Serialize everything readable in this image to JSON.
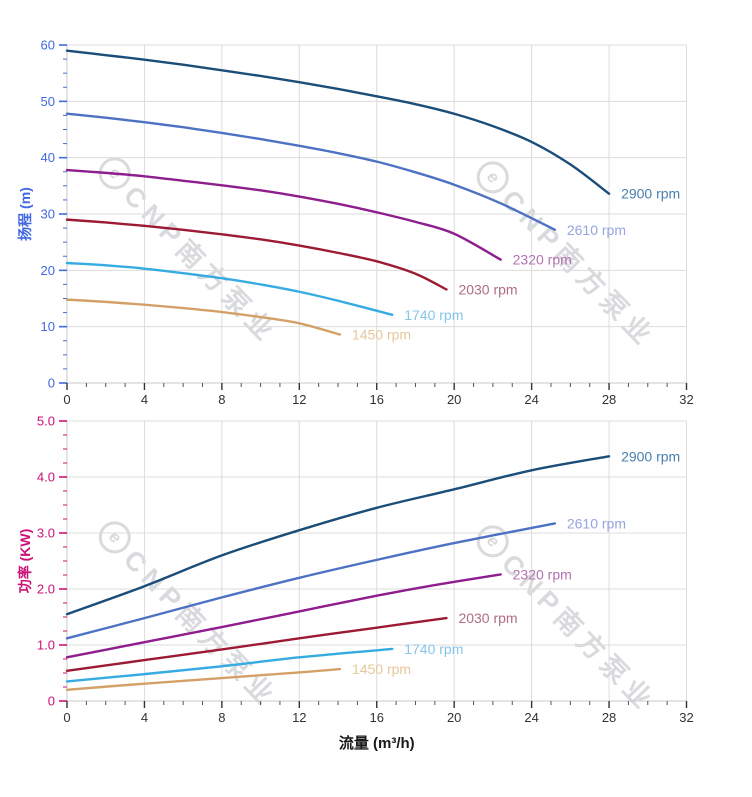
{
  "x_axis_title": "流量 (m³/h)",
  "watermark": {
    "symbol": "e",
    "text": "CNP南方泵业"
  },
  "chart_data": [
    {
      "type": "line",
      "name": "head-vs-flow",
      "title": "",
      "xlabel": "流量 (m³/h)",
      "ylabel": "扬程 (m)",
      "xlim": [
        0,
        32
      ],
      "ylim": [
        0,
        60
      ],
      "grid": true,
      "legend_position": "end-of-line-labels",
      "x_major_step": 4,
      "x_minor_step": 1,
      "y_major_step": 10,
      "y_minor_step": 2.5,
      "x_tick_labels": [
        "0",
        "4",
        "8",
        "12",
        "16",
        "20",
        "24",
        "28",
        "32"
      ],
      "y_tick_labels": [
        "0",
        "10",
        "20",
        "30",
        "40",
        "50",
        "60"
      ],
      "axis_color": "#4169e1",
      "x_tick_color": "#333333",
      "series": [
        {
          "label": "2900 rpm",
          "color": "#1b4d79",
          "label_color": "#4a7fae",
          "points": [
            [
              0,
              59
            ],
            [
              2,
              58.2
            ],
            [
              4,
              57.4
            ],
            [
              6,
              56.5
            ],
            [
              8,
              55.5
            ],
            [
              10,
              54.5
            ],
            [
              12,
              53.4
            ],
            [
              14,
              52.2
            ],
            [
              16,
              50.9
            ],
            [
              18,
              49.5
            ],
            [
              20,
              47.8
            ],
            [
              22,
              45.6
            ],
            [
              24,
              42.8
            ],
            [
              26,
              38.8
            ],
            [
              28,
              33.6
            ]
          ]
        },
        {
          "label": "2610 rpm",
          "color": "#4d72c4",
          "label_color": "#93a7dd",
          "points": [
            [
              0,
              47.8
            ],
            [
              2,
              47.1
            ],
            [
              4,
              46.3
            ],
            [
              6,
              45.4
            ],
            [
              8,
              44.4
            ],
            [
              10,
              43.3
            ],
            [
              12,
              42.1
            ],
            [
              14,
              40.8
            ],
            [
              16,
              39.3
            ],
            [
              18,
              37.4
            ],
            [
              20,
              35.2
            ],
            [
              22.4,
              31.9
            ],
            [
              25.2,
              27.2
            ]
          ]
        },
        {
          "label": "2320 rpm",
          "color": "#8e1d8e",
          "label_color": "#b173b1",
          "points": [
            [
              0,
              37.8
            ],
            [
              2,
              37.3
            ],
            [
              4,
              36.7
            ],
            [
              6,
              35.9
            ],
            [
              8,
              35.1
            ],
            [
              10,
              34.2
            ],
            [
              12,
              33.1
            ],
            [
              14,
              31.8
            ],
            [
              16,
              30.3
            ],
            [
              18,
              28.6
            ],
            [
              20,
              26.5
            ],
            [
              22.4,
              21.9
            ]
          ]
        },
        {
          "label": "2030 rpm",
          "color": "#9c1a33",
          "label_color": "#ad6e82",
          "points": [
            [
              0,
              29
            ],
            [
              2,
              28.5
            ],
            [
              4,
              27.9
            ],
            [
              6,
              27.2
            ],
            [
              8,
              26.4
            ],
            [
              10,
              25.5
            ],
            [
              12,
              24.4
            ],
            [
              14,
              23.1
            ],
            [
              16,
              21.6
            ],
            [
              18,
              19.4
            ],
            [
              19.6,
              16.6
            ]
          ]
        },
        {
          "label": "1740 rpm",
          "color": "#35abe2",
          "label_color": "#85c5ec",
          "points": [
            [
              0,
              21.3
            ],
            [
              2,
              20.9
            ],
            [
              4,
              20.3
            ],
            [
              6,
              19.5
            ],
            [
              8,
              18.6
            ],
            [
              10,
              17.5
            ],
            [
              12,
              16.2
            ],
            [
              14,
              14.6
            ],
            [
              16.8,
              12.1
            ]
          ]
        },
        {
          "label": "1450 rpm",
          "color": "#d3a168",
          "label_color": "#e6c79c",
          "points": [
            [
              0,
              14.8
            ],
            [
              2,
              14.4
            ],
            [
              4,
              13.9
            ],
            [
              6,
              13.3
            ],
            [
              8,
              12.6
            ],
            [
              10,
              11.7
            ],
            [
              12,
              10.6
            ],
            [
              14.1,
              8.6
            ]
          ]
        }
      ]
    },
    {
      "type": "line",
      "name": "power-vs-flow",
      "title": "",
      "xlabel": "流量 (m³/h)",
      "ylabel": "功率 (KW)",
      "xlim": [
        0,
        32
      ],
      "ylim": [
        0,
        5
      ],
      "grid": true,
      "legend_position": "end-of-line-labels",
      "x_major_step": 4,
      "x_minor_step": 1,
      "y_major_step": 1,
      "y_minor_step": 0.25,
      "x_tick_labels": [
        "0",
        "4",
        "8",
        "12",
        "16",
        "20",
        "24",
        "28",
        "32"
      ],
      "y_tick_labels": [
        "0",
        "1.0",
        "2.0",
        "3.0",
        "4.0",
        "5.0"
      ],
      "axis_color": "#cc1177",
      "x_tick_color": "#333333",
      "series": [
        {
          "label": "2900 rpm",
          "color": "#1b4d79",
          "label_color": "#4a7fae",
          "points": [
            [
              0,
              1.55
            ],
            [
              4,
              2.05
            ],
            [
              8,
              2.6
            ],
            [
              12,
              3.05
            ],
            [
              16,
              3.45
            ],
            [
              20,
              3.78
            ],
            [
              24,
              4.12
            ],
            [
              28,
              4.37
            ]
          ]
        },
        {
          "label": "2610 rpm",
          "color": "#4d72c4",
          "label_color": "#93a7dd",
          "points": [
            [
              0,
              1.12
            ],
            [
              4,
              1.48
            ],
            [
              8,
              1.85
            ],
            [
              12,
              2.2
            ],
            [
              16,
              2.52
            ],
            [
              20,
              2.82
            ],
            [
              25.2,
              3.17
            ]
          ]
        },
        {
          "label": "2320 rpm",
          "color": "#8e1d8e",
          "label_color": "#b173b1",
          "points": [
            [
              0,
              0.78
            ],
            [
              4,
              1.05
            ],
            [
              8,
              1.32
            ],
            [
              12,
              1.6
            ],
            [
              16,
              1.88
            ],
            [
              19,
              2.07
            ],
            [
              22.4,
              2.26
            ]
          ]
        },
        {
          "label": "2030 rpm",
          "color": "#9c1a33",
          "label_color": "#ad6e82",
          "points": [
            [
              0,
              0.54
            ],
            [
              4,
              0.73
            ],
            [
              8,
              0.92
            ],
            [
              12,
              1.12
            ],
            [
              16,
              1.31
            ],
            [
              19.6,
              1.48
            ]
          ]
        },
        {
          "label": "1740 rpm",
          "color": "#35abe2",
          "label_color": "#85c5ec",
          "points": [
            [
              0,
              0.35
            ],
            [
              4,
              0.48
            ],
            [
              8,
              0.62
            ],
            [
              12,
              0.78
            ],
            [
              16.8,
              0.93
            ]
          ]
        },
        {
          "label": "1450 rpm",
          "color": "#d3a168",
          "label_color": "#e6c79c",
          "points": [
            [
              0,
              0.2
            ],
            [
              4,
              0.31
            ],
            [
              8,
              0.41
            ],
            [
              12,
              0.51
            ],
            [
              14.1,
              0.57
            ]
          ]
        }
      ]
    }
  ]
}
